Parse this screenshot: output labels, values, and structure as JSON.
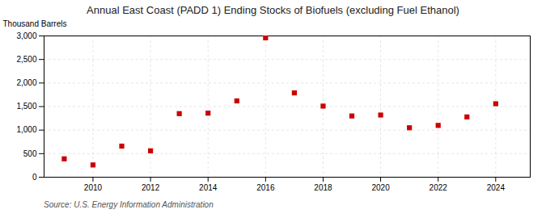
{
  "chart_data": {
    "type": "scatter",
    "title": "Annual East Coast (PADD 1) Ending Stocks of Biofuels (excluding Fuel Ethanol)",
    "ylabel": "Thousand Barrels",
    "source": "Source: U.S. Energy Information Administration",
    "x": [
      2009,
      2010,
      2011,
      2012,
      2013,
      2014,
      2015,
      2016,
      2017,
      2018,
      2019,
      2020,
      2021,
      2022,
      2023,
      2024
    ],
    "values": [
      390,
      260,
      660,
      560,
      1350,
      1360,
      1620,
      2960,
      1790,
      1510,
      1300,
      1320,
      1050,
      1100,
      1280,
      1560
    ],
    "color": "#cc0000",
    "marker": "square",
    "xlim": [
      2008.3,
      2025.2
    ],
    "xticks": [
      2010,
      2012,
      2014,
      2016,
      2018,
      2020,
      2022,
      2024
    ],
    "ylim": [
      0,
      3000
    ],
    "yticks": [
      0,
      500,
      {
        "value": 1000,
        "label": "1,000"
      },
      {
        "value": 1500,
        "label": "1,500"
      },
      {
        "value": 2000,
        "label": "2,000"
      },
      {
        "value": 2500,
        "label": "2,500"
      },
      {
        "value": 3000,
        "label": "3,000"
      }
    ],
    "grid": true
  }
}
